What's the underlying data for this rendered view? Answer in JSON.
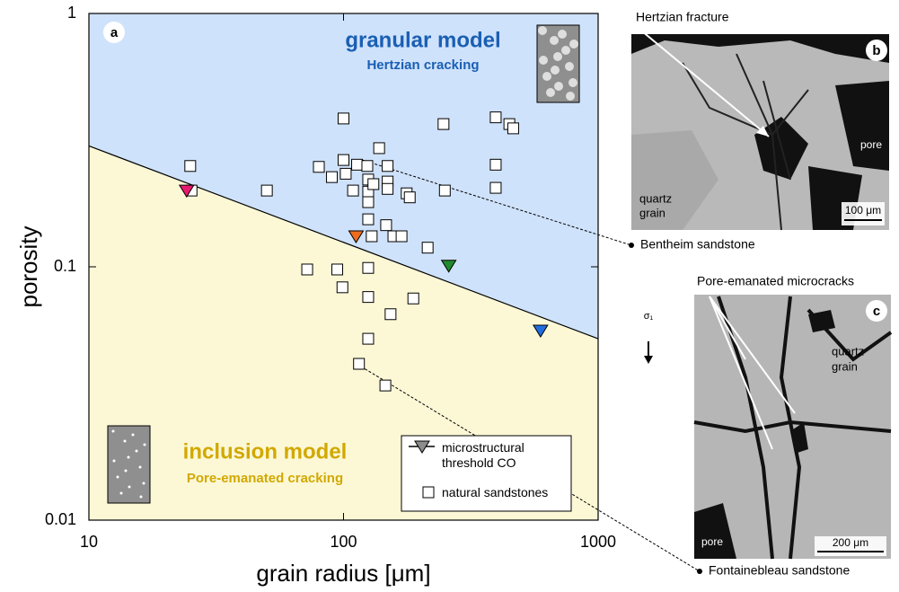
{
  "chart_data": {
    "type": "scatter",
    "panel_label": "a",
    "x_label": "grain radius [μm]",
    "y_label": "porosity",
    "xlim": [
      10,
      1000
    ],
    "ylim": [
      0.01,
      1
    ],
    "xticks": [
      10,
      100,
      1000
    ],
    "yticks": [
      1,
      0.1,
      0.01
    ],
    "log_x": true,
    "log_y": true,
    "legend": "lower right",
    "regions": {
      "above_color": "#cfe2fb",
      "below_color": "#fcf8d6"
    },
    "annotations": [
      {
        "text": "granular model",
        "color": "#1a5fb4"
      },
      {
        "text": "Hertzian cracking",
        "color": "#1a5fb4"
      },
      {
        "text": "inclusion model",
        "color": "#d2a800"
      },
      {
        "text": "Pore-emanated cracking",
        "color": "#d2a800"
      }
    ],
    "series": [
      {
        "name": "natural sandstones",
        "marker": "square",
        "color": "#ffffff",
        "x": [
          25,
          25.3,
          50,
          100,
          80,
          90,
          100,
          102,
          113,
          109,
          124,
          125,
          125,
          125,
          125,
          138,
          131,
          149,
          149,
          149,
          147,
          129,
          157,
          169,
          177,
          182,
          214,
          247,
          250,
          396,
          448,
          464,
          396,
          396,
          72,
          94.5,
          125,
          99,
          125,
          188,
          153,
          125,
          115,
          146
        ],
        "y": [
          0.25,
          0.2,
          0.2,
          0.385,
          0.248,
          0.226,
          0.264,
          0.233,
          0.253,
          0.2,
          0.25,
          0.221,
          0.198,
          0.18,
          0.154,
          0.294,
          0.212,
          0.25,
          0.217,
          0.203,
          0.146,
          0.132,
          0.132,
          0.132,
          0.195,
          0.188,
          0.119,
          0.366,
          0.2,
          0.389,
          0.366,
          0.352,
          0.253,
          0.205,
          0.0976,
          0.0976,
          0.099,
          0.083,
          0.076,
          0.075,
          0.065,
          0.052,
          0.0414,
          0.034
        ]
      },
      {
        "name": "microstructural threshold CO",
        "marker": "triangle",
        "legend_color": "#8c8c8c",
        "colors": [
          "#e8196e",
          "#ec6d1f",
          "#1f8a2e",
          "#1f6fe0"
        ],
        "x": [
          24.2,
          112,
          259,
          594
        ],
        "y": [
          0.2,
          0.132,
          0.101,
          0.056
        ],
        "line": {
          "x": [
            10,
            1000
          ],
          "y": [
            0.3,
            0.052
          ]
        }
      }
    ]
  },
  "panel_b": {
    "label": "b",
    "caption": "Hertzian fracture",
    "pore": "pore",
    "grain_1": "quartz",
    "grain_2": "grain",
    "scale": "100 μm",
    "sample": "Bentheim sandstone"
  },
  "panel_c": {
    "label": "c",
    "caption": "Pore-emanated microcracks",
    "stress": "σ₁",
    "grain_1": "quartz",
    "grain_2": "grain",
    "pore": "pore",
    "scale": "200 μm",
    "sample": "Fontainebleau sandstone"
  }
}
